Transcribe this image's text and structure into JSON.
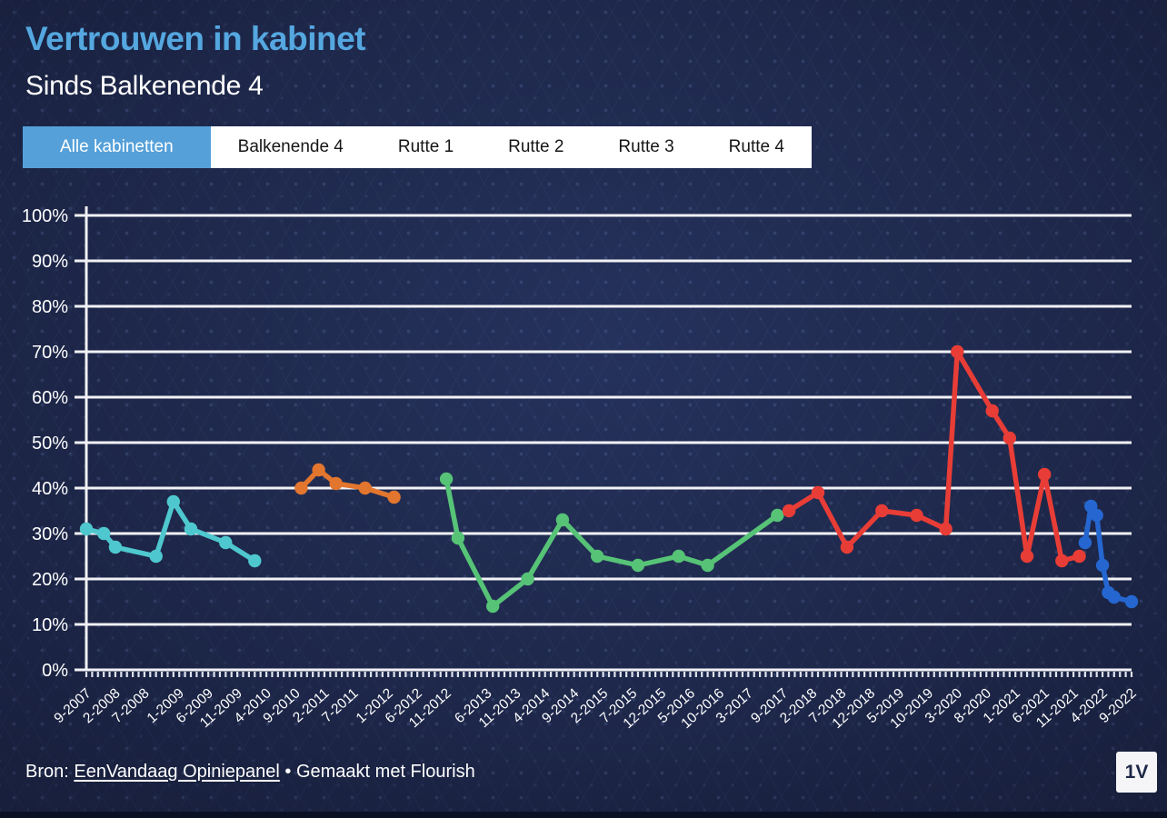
{
  "header": {
    "title": "Vertrouwen in kabinet",
    "subtitle": "Sinds Balkenende 4"
  },
  "tabs": [
    {
      "label": "Alle kabinetten",
      "active": true
    },
    {
      "label": "Balkenende 4",
      "active": false
    },
    {
      "label": "Rutte 1",
      "active": false
    },
    {
      "label": "Rutte 2",
      "active": false
    },
    {
      "label": "Rutte 3",
      "active": false
    },
    {
      "label": "Rutte 4",
      "active": false
    }
  ],
  "footer": {
    "source_prefix": "Bron: ",
    "source_link": "EenVandaag Opiniepanel",
    "source_suffix": " • Gemaakt met Flourish",
    "logo_text": "1V"
  },
  "colors": {
    "background": "#1c2546",
    "title_blue": "#55a7e0",
    "tab_active_blue": "#55a0d9",
    "gridline": "#f1f1f5",
    "balkenende4": "#4ec8ce",
    "rutte1": "#e2762e",
    "rutte2": "#56c377",
    "rutte3": "#e83d36",
    "rutte4": "#2566d0"
  },
  "chart_data": {
    "type": "line",
    "title": "Vertrouwen in kabinet",
    "xlabel": "",
    "ylabel": "",
    "ylim": [
      0,
      100
    ],
    "ytick_step": 10,
    "ytick_suffix": "%",
    "grid": true,
    "legend": "none",
    "x_axis": {
      "start": "9-2007",
      "end": "9-2022",
      "unit": "months",
      "total_months": 180
    },
    "xticks": [
      {
        "label": "9-2007",
        "m": 0
      },
      {
        "label": "2-2008",
        "m": 5
      },
      {
        "label": "7-2008",
        "m": 10
      },
      {
        "label": "1-2009",
        "m": 16
      },
      {
        "label": "6-2009",
        "m": 21
      },
      {
        "label": "11-2009",
        "m": 26
      },
      {
        "label": "4-2010",
        "m": 31
      },
      {
        "label": "9-2010",
        "m": 36
      },
      {
        "label": "2-2011",
        "m": 41
      },
      {
        "label": "7-2011",
        "m": 46
      },
      {
        "label": "1-2012",
        "m": 52
      },
      {
        "label": "6-2012",
        "m": 57
      },
      {
        "label": "11-2012",
        "m": 62
      },
      {
        "label": "6-2013",
        "m": 69
      },
      {
        "label": "11-2013",
        "m": 74
      },
      {
        "label": "4-2014",
        "m": 79
      },
      {
        "label": "9-2014",
        "m": 84
      },
      {
        "label": "2-2015",
        "m": 89
      },
      {
        "label": "7-2015",
        "m": 94
      },
      {
        "label": "12-2015",
        "m": 99
      },
      {
        "label": "5-2016",
        "m": 104
      },
      {
        "label": "10-2016",
        "m": 109
      },
      {
        "label": "3-2017",
        "m": 114
      },
      {
        "label": "9-2017",
        "m": 120
      },
      {
        "label": "2-2018",
        "m": 125
      },
      {
        "label": "7-2018",
        "m": 130
      },
      {
        "label": "12-2018",
        "m": 135
      },
      {
        "label": "5-2019",
        "m": 140
      },
      {
        "label": "10-2019",
        "m": 145
      },
      {
        "label": "3-2020",
        "m": 150
      },
      {
        "label": "8-2020",
        "m": 155
      },
      {
        "label": "1-2021",
        "m": 160
      },
      {
        "label": "6-2021",
        "m": 165
      },
      {
        "label": "11-2021",
        "m": 170
      },
      {
        "label": "4-2022",
        "m": 175
      },
      {
        "label": "9-2022",
        "m": 180
      }
    ],
    "series": [
      {
        "name": "Balkenende 4",
        "color": "#4ec8ce",
        "points": [
          {
            "date": "9-2007",
            "m": 0,
            "value": 31
          },
          {
            "date": "12-2007",
            "m": 3,
            "value": 30
          },
          {
            "date": "2-2008",
            "m": 5,
            "value": 27
          },
          {
            "date": "9-2008",
            "m": 12,
            "value": 25
          },
          {
            "date": "12-2008",
            "m": 15,
            "value": 37
          },
          {
            "date": "3-2009",
            "m": 18,
            "value": 31
          },
          {
            "date": "9-2009",
            "m": 24,
            "value": 28
          },
          {
            "date": "2-2010",
            "m": 29,
            "value": 24
          }
        ]
      },
      {
        "name": "Rutte 1",
        "color": "#e2762e",
        "points": [
          {
            "date": "10-2010",
            "m": 37,
            "value": 40
          },
          {
            "date": "1-2011",
            "m": 40,
            "value": 44
          },
          {
            "date": "4-2011",
            "m": 43,
            "value": 41
          },
          {
            "date": "9-2011",
            "m": 48,
            "value": 40
          },
          {
            "date": "2-2012",
            "m": 53,
            "value": 38
          }
        ]
      },
      {
        "name": "Rutte 2",
        "color": "#56c377",
        "points": [
          {
            "date": "11-2012",
            "m": 62,
            "value": 42
          },
          {
            "date": "1-2013",
            "m": 64,
            "value": 29
          },
          {
            "date": "7-2013",
            "m": 70,
            "value": 14
          },
          {
            "date": "1-2014",
            "m": 76,
            "value": 20
          },
          {
            "date": "7-2014",
            "m": 82,
            "value": 33
          },
          {
            "date": "1-2015",
            "m": 88,
            "value": 25
          },
          {
            "date": "8-2015",
            "m": 95,
            "value": 23
          },
          {
            "date": "3-2016",
            "m": 102,
            "value": 25
          },
          {
            "date": "8-2016",
            "m": 107,
            "value": 23
          },
          {
            "date": "8-2017",
            "m": 119,
            "value": 34
          }
        ]
      },
      {
        "name": "Rutte 3",
        "color": "#e83d36",
        "points": [
          {
            "date": "10-2017",
            "m": 121,
            "value": 35
          },
          {
            "date": "3-2018",
            "m": 126,
            "value": 39
          },
          {
            "date": "8-2018",
            "m": 131,
            "value": 27
          },
          {
            "date": "2-2019",
            "m": 137,
            "value": 35
          },
          {
            "date": "8-2019",
            "m": 143,
            "value": 34
          },
          {
            "date": "1-2020",
            "m": 148,
            "value": 31
          },
          {
            "date": "3-2020",
            "m": 150,
            "value": 70
          },
          {
            "date": "9-2020",
            "m": 156,
            "value": 57
          },
          {
            "date": "12-2020",
            "m": 159,
            "value": 51
          },
          {
            "date": "3-2021",
            "m": 162,
            "value": 25
          },
          {
            "date": "6-2021",
            "m": 165,
            "value": 43
          },
          {
            "date": "9-2021",
            "m": 168,
            "value": 24
          },
          {
            "date": "12-2021",
            "m": 171,
            "value": 25
          }
        ]
      },
      {
        "name": "Rutte 4",
        "color": "#2566d0",
        "points": [
          {
            "date": "1-2022",
            "m": 172,
            "value": 28
          },
          {
            "date": "2-2022",
            "m": 173,
            "value": 36
          },
          {
            "date": "3-2022",
            "m": 174,
            "value": 34
          },
          {
            "date": "4-2022",
            "m": 175,
            "value": 23
          },
          {
            "date": "5-2022",
            "m": 176,
            "value": 17
          },
          {
            "date": "6-2022",
            "m": 177,
            "value": 16
          },
          {
            "date": "9-2022",
            "m": 180,
            "value": 15
          }
        ]
      }
    ]
  }
}
